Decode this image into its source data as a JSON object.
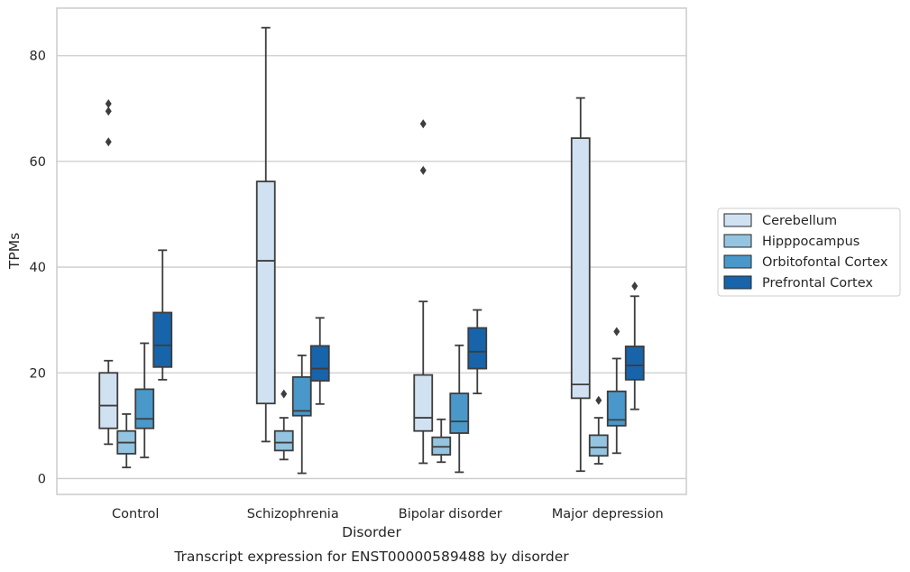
{
  "chart_data": {
    "type": "box",
    "caption": "Transcript expression for ENST00000589488 by disorder",
    "xlabel": "Disorder",
    "ylabel": "TPMs",
    "ylim": [
      -3,
      89
    ],
    "yticks": [
      0,
      20,
      40,
      60,
      80
    ],
    "grid": true,
    "legend_position": "right",
    "categories": [
      "Control",
      "Schizophrenia",
      "Bipolar disorder",
      "Major depression"
    ],
    "series": [
      {
        "name": "Cerebellum",
        "color": "#d0e1f2",
        "boxes": [
          {
            "whislo": 6.5,
            "q1": 9.5,
            "med": 13.8,
            "q3": 20.0,
            "whishi": 22.3,
            "fliers": [
              63.7,
              69.5,
              70.9
            ]
          },
          {
            "whislo": 7.0,
            "q1": 14.2,
            "med": 41.2,
            "q3": 56.2,
            "whishi": 85.3,
            "fliers": []
          },
          {
            "whislo": 2.9,
            "q1": 9.0,
            "med": 11.5,
            "q3": 19.6,
            "whishi": 33.5,
            "fliers": [
              58.3,
              67.1
            ]
          },
          {
            "whislo": 1.4,
            "q1": 15.2,
            "med": 17.8,
            "q3": 64.4,
            "whishi": 72.0,
            "fliers": []
          }
        ]
      },
      {
        "name": "Hipppocampus",
        "color": "#94c4df",
        "boxes": [
          {
            "whislo": 2.1,
            "q1": 4.7,
            "med": 6.8,
            "q3": 9.0,
            "whishi": 12.2,
            "fliers": []
          },
          {
            "whislo": 3.6,
            "q1": 5.3,
            "med": 6.8,
            "q3": 9.0,
            "whishi": 11.5,
            "fliers": [
              16.0
            ]
          },
          {
            "whislo": 3.1,
            "q1": 4.5,
            "med": 6.0,
            "q3": 7.8,
            "whishi": 11.2,
            "fliers": []
          },
          {
            "whislo": 2.8,
            "q1": 4.3,
            "med": 5.9,
            "q3": 8.2,
            "whishi": 11.5,
            "fliers": [
              14.8
            ]
          }
        ]
      },
      {
        "name": "Orbitofontal Cortex",
        "color": "#4a98c9",
        "boxes": [
          {
            "whislo": 4.0,
            "q1": 9.5,
            "med": 11.3,
            "q3": 16.9,
            "whishi": 25.6,
            "fliers": []
          },
          {
            "whislo": 1.0,
            "q1": 11.9,
            "med": 12.8,
            "q3": 19.2,
            "whishi": 23.3,
            "fliers": []
          },
          {
            "whislo": 1.2,
            "q1": 8.6,
            "med": 10.8,
            "q3": 16.1,
            "whishi": 25.2,
            "fliers": []
          },
          {
            "whislo": 4.8,
            "q1": 10.0,
            "med": 11.1,
            "q3": 16.5,
            "whishi": 22.7,
            "fliers": [
              27.8
            ]
          }
        ]
      },
      {
        "name": "Prefrontal Cortex",
        "color": "#1764ab",
        "boxes": [
          {
            "whislo": 18.7,
            "q1": 21.1,
            "med": 25.2,
            "q3": 31.4,
            "whishi": 43.2,
            "fliers": []
          },
          {
            "whislo": 14.1,
            "q1": 18.5,
            "med": 20.8,
            "q3": 25.1,
            "whishi": 30.4,
            "fliers": []
          },
          {
            "whislo": 16.1,
            "q1": 20.8,
            "med": 24.0,
            "q3": 28.5,
            "whishi": 31.9,
            "fliers": []
          },
          {
            "whislo": 13.1,
            "q1": 18.7,
            "med": 21.4,
            "q3": 25.0,
            "whishi": 34.5,
            "fliers": [
              36.4
            ]
          }
        ]
      }
    ]
  }
}
